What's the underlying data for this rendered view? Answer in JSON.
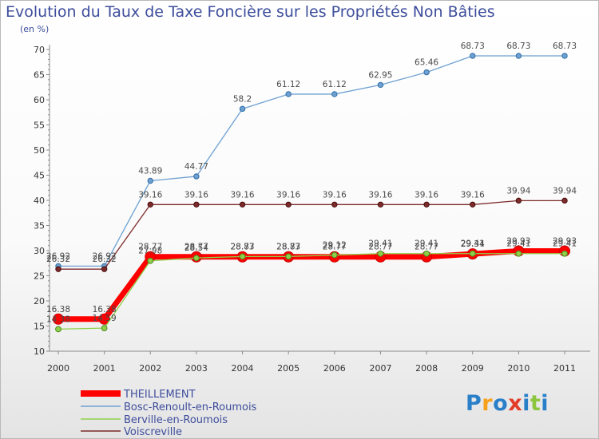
{
  "chart_data": {
    "type": "line",
    "title": "Evolution du Taux de Taxe Foncière sur les Propriétés Non Bâties",
    "ylabel": "(en %)",
    "xlabel": "",
    "ylim": [
      10,
      70
    ],
    "yticks": [
      "10",
      "15",
      "20",
      "25",
      "30",
      "35",
      "40",
      "45",
      "50",
      "55",
      "60",
      "65",
      "70"
    ],
    "categories": [
      "2000",
      "2001",
      "2002",
      "2003",
      "2004",
      "2005",
      "2006",
      "2007",
      "2008",
      "2009",
      "2010",
      "2011"
    ],
    "grid": false,
    "legend_position": "bottom-left",
    "series": [
      {
        "name": "THEILLEMENT",
        "color": "#ff0000",
        "values": [
          16.38,
          16.38,
          28.77,
          28.77,
          28.77,
          28.77,
          28.77,
          28.77,
          28.77,
          29.34,
          29.93,
          29.93
        ],
        "labels": [
          "16.38",
          "16.38",
          "28.77",
          "28.77",
          "28.77",
          "28.77",
          "28.77",
          "28.77",
          "28.77",
          "29.34",
          "29.93",
          "29.93"
        ]
      },
      {
        "name": "Bosc-Renoult-en-Roumois",
        "color": "#6ea1d1",
        "values": [
          26.92,
          26.92,
          43.89,
          44.77,
          58.2,
          61.12,
          61.12,
          62.95,
          65.46,
          68.73,
          68.73,
          68.73
        ],
        "labels": [
          "26.92",
          "26.92",
          "43.89",
          "44.77",
          "58.2",
          "61.12",
          "61.12",
          "62.95",
          "65.46",
          "68.73",
          "68.73",
          "68.73"
        ]
      },
      {
        "name": "Berville-en-Roumois",
        "color": "#8ed04a",
        "values": [
          14.38,
          14.59,
          27.98,
          28.54,
          28.83,
          28.83,
          29.12,
          29.41,
          29.41,
          29.41,
          29.41,
          29.41
        ],
        "labels": [
          "14.38",
          "14.59",
          "27.98",
          "28.54",
          "28.83",
          "28.83",
          "29.12",
          "29.41",
          "29.41",
          "29.41",
          "29.41",
          "29.41"
        ]
      },
      {
        "name": "Voiscreville",
        "color": "#7d2a2a",
        "values": [
          26.32,
          26.32,
          39.16,
          39.16,
          39.16,
          39.16,
          39.16,
          39.16,
          39.16,
          39.16,
          39.94,
          39.94
        ],
        "labels": [
          "26.32",
          "26.32",
          "39.16",
          "39.16",
          "39.16",
          "39.16",
          "39.16",
          "39.16",
          "39.16",
          "39.16",
          "39.94",
          "39.94"
        ]
      }
    ]
  },
  "logo": {
    "letters": [
      "P",
      "r",
      "o",
      "x",
      "i",
      "t",
      "i"
    ],
    "colors": [
      "#2a7fc9",
      "#f7a11a",
      "#2a7fc9",
      "#e23d28",
      "#2a7fc9",
      "#8cc63f",
      "#2a7fc9"
    ]
  }
}
